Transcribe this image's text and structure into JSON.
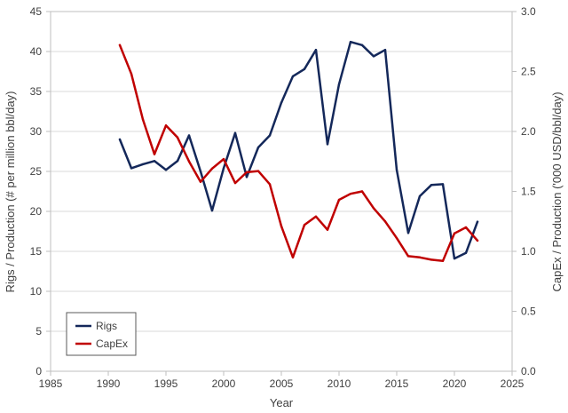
{
  "chart_data": {
    "type": "line",
    "xlabel": "Year",
    "ylabel_left": "Rigs / Production (# per million bbl/day)",
    "ylabel_right": "CapEx / Production ('000 USD/bbl/day)",
    "xlim": [
      1985,
      2025
    ],
    "x_ticks": [
      1985,
      1990,
      1995,
      2000,
      2005,
      2010,
      2015,
      2020,
      2025
    ],
    "ylim_left": [
      0,
      45
    ],
    "y_ticks_left": [
      0,
      5,
      10,
      15,
      20,
      25,
      30,
      35,
      40,
      45
    ],
    "ylim_right": [
      0.0,
      3.0
    ],
    "y_ticks_right": [
      "0.0",
      "0.5",
      "1.0",
      "1.5",
      "2.0",
      "2.5",
      "3.0"
    ],
    "grid": "horizontal",
    "legend_position": "bottom-left",
    "series": [
      {
        "name": "Rigs",
        "axis": "left",
        "color": "#14285a",
        "x": [
          1991,
          1992,
          1993,
          1994,
          1995,
          1996,
          1997,
          1998,
          1999,
          2000,
          2001,
          2002,
          2003,
          2004,
          2005,
          2006,
          2007,
          2008,
          2009,
          2010,
          2011,
          2012,
          2013,
          2014,
          2015,
          2016,
          2017,
          2018,
          2019,
          2020,
          2021,
          2022
        ],
        "values": [
          29.0,
          25.4,
          25.9,
          26.3,
          25.2,
          26.3,
          29.5,
          25.0,
          20.1,
          25.4,
          29.8,
          24.3,
          28.0,
          29.5,
          33.6,
          36.9,
          37.8,
          40.2,
          28.4,
          35.9,
          41.2,
          40.8,
          39.4,
          40.2,
          25.2,
          17.3,
          21.9,
          23.3,
          23.4,
          14.1,
          14.8,
          18.7
        ]
      },
      {
        "name": "CapEx",
        "axis": "right",
        "color": "#c00000",
        "x": [
          1991,
          1992,
          1993,
          1994,
          1995,
          1996,
          1997,
          1998,
          1999,
          2000,
          2001,
          2002,
          2003,
          2004,
          2005,
          2006,
          2007,
          2008,
          2009,
          2010,
          2011,
          2012,
          2013,
          2014,
          2015,
          2016,
          2017,
          2018,
          2019,
          2020,
          2021,
          2022
        ],
        "values": [
          2.72,
          2.48,
          2.1,
          1.81,
          2.05,
          1.95,
          1.75,
          1.58,
          1.69,
          1.77,
          1.57,
          1.66,
          1.67,
          1.56,
          1.21,
          0.95,
          1.22,
          1.29,
          1.18,
          1.43,
          1.48,
          1.5,
          1.36,
          1.25,
          1.11,
          0.96,
          0.95,
          0.93,
          0.92,
          1.15,
          1.2,
          1.09
        ]
      }
    ]
  }
}
